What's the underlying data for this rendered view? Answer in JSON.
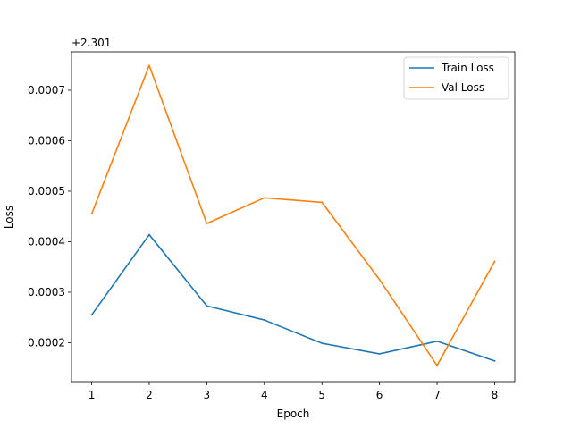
{
  "chart_data": {
    "type": "line",
    "xlabel": "Epoch",
    "ylabel": "Loss",
    "y_offset_label": "+2.301",
    "x": [
      1,
      2,
      3,
      4,
      5,
      6,
      7,
      8
    ],
    "xticks": [
      "1",
      "2",
      "3",
      "4",
      "5",
      "6",
      "7",
      "8"
    ],
    "xlim": [
      0.65,
      8.35
    ],
    "yticks": [
      0.0002,
      0.0003,
      0.0004,
      0.0005,
      0.0006,
      0.0007
    ],
    "ytick_labels": [
      "0.0002",
      "0.0003",
      "0.0004",
      "0.0005",
      "0.0006",
      "0.0007"
    ],
    "ylim": [
      0.000123,
      0.000776
    ],
    "grid": false,
    "legend_position": "upper right",
    "series": [
      {
        "name": "Train Loss",
        "color": "#1f77b4",
        "values": [
          0.000255,
          0.000414,
          0.000273,
          0.000245,
          0.000199,
          0.000178,
          0.000203,
          0.000164
        ]
      },
      {
        "name": "Val Loss",
        "color": "#ff7f0e",
        "values": [
          0.000455,
          0.000749,
          0.000436,
          0.000487,
          0.000478,
          0.000325,
          0.000155,
          0.000361
        ]
      }
    ]
  }
}
